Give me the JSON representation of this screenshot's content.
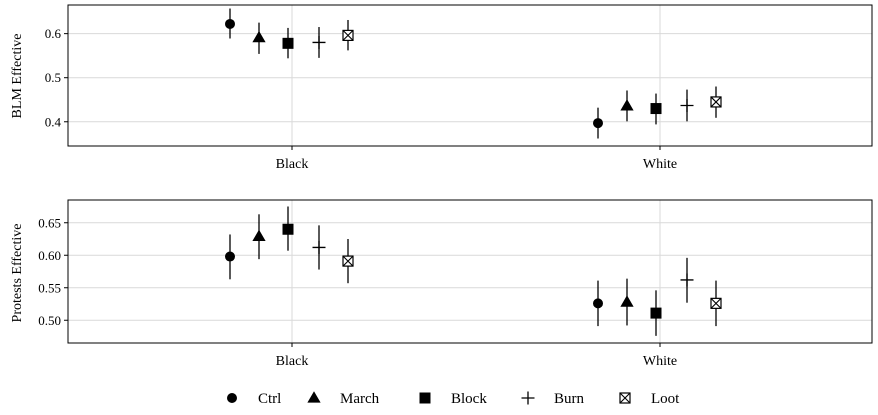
{
  "chart_data": [
    {
      "type": "scatter",
      "ylabel": "BLM Effective",
      "xlabel": "",
      "categories": [
        "Black",
        "White"
      ],
      "ylim": [
        0.345,
        0.665
      ],
      "yticks": [
        "0.4",
        "0.5",
        "0.6"
      ],
      "ytick_values": [
        0.4,
        0.5,
        0.6
      ],
      "grid": true,
      "series": [
        {
          "name": "Ctrl",
          "marker": "circle",
          "values": [
            0.622,
            0.397
          ],
          "lower": [
            0.589,
            0.362
          ],
          "upper": [
            0.657,
            0.432
          ]
        },
        {
          "name": "March",
          "marker": "triangle",
          "values": [
            0.591,
            0.436
          ],
          "lower": [
            0.554,
            0.401
          ],
          "upper": [
            0.625,
            0.471
          ]
        },
        {
          "name": "Block",
          "marker": "square",
          "values": [
            0.578,
            0.43
          ],
          "lower": [
            0.544,
            0.394
          ],
          "upper": [
            0.613,
            0.464
          ]
        },
        {
          "name": "Burn",
          "marker": "plus",
          "values": [
            0.58,
            0.437
          ],
          "lower": [
            0.545,
            0.401
          ],
          "upper": [
            0.615,
            0.473
          ]
        },
        {
          "name": "Loot",
          "marker": "boxx",
          "values": [
            0.596,
            0.445
          ],
          "lower": [
            0.562,
            0.409
          ],
          "upper": [
            0.631,
            0.48
          ]
        }
      ]
    },
    {
      "type": "scatter",
      "ylabel": "Protests Effective",
      "xlabel": "",
      "categories": [
        "Black",
        "White"
      ],
      "ylim": [
        0.465,
        0.685
      ],
      "yticks": [
        "0.50",
        "0.55",
        "0.60",
        "0.65"
      ],
      "ytick_values": [
        0.5,
        0.55,
        0.6,
        0.65
      ],
      "grid": true,
      "series": [
        {
          "name": "Ctrl",
          "marker": "circle",
          "values": [
            0.598,
            0.526
          ],
          "lower": [
            0.563,
            0.491
          ],
          "upper": [
            0.632,
            0.561
          ]
        },
        {
          "name": "March",
          "marker": "triangle",
          "values": [
            0.629,
            0.528
          ],
          "lower": [
            0.594,
            0.492
          ],
          "upper": [
            0.663,
            0.564
          ]
        },
        {
          "name": "Block",
          "marker": "square",
          "values": [
            0.64,
            0.511
          ],
          "lower": [
            0.607,
            0.476
          ],
          "upper": [
            0.675,
            0.546
          ]
        },
        {
          "name": "Burn",
          "marker": "plus",
          "values": [
            0.612,
            0.562
          ],
          "lower": [
            0.578,
            0.527
          ],
          "upper": [
            0.646,
            0.596
          ]
        },
        {
          "name": "Loot",
          "marker": "boxx",
          "values": [
            0.591,
            0.526
          ],
          "lower": [
            0.557,
            0.491
          ],
          "upper": [
            0.625,
            0.561
          ]
        }
      ]
    }
  ],
  "legend": {
    "position": "bottom",
    "items": [
      {
        "label": "Ctrl",
        "marker": "circle"
      },
      {
        "label": "March",
        "marker": "triangle"
      },
      {
        "label": "Block",
        "marker": "square"
      },
      {
        "label": "Burn",
        "marker": "plus"
      },
      {
        "label": "Loot",
        "marker": "boxx"
      }
    ]
  }
}
